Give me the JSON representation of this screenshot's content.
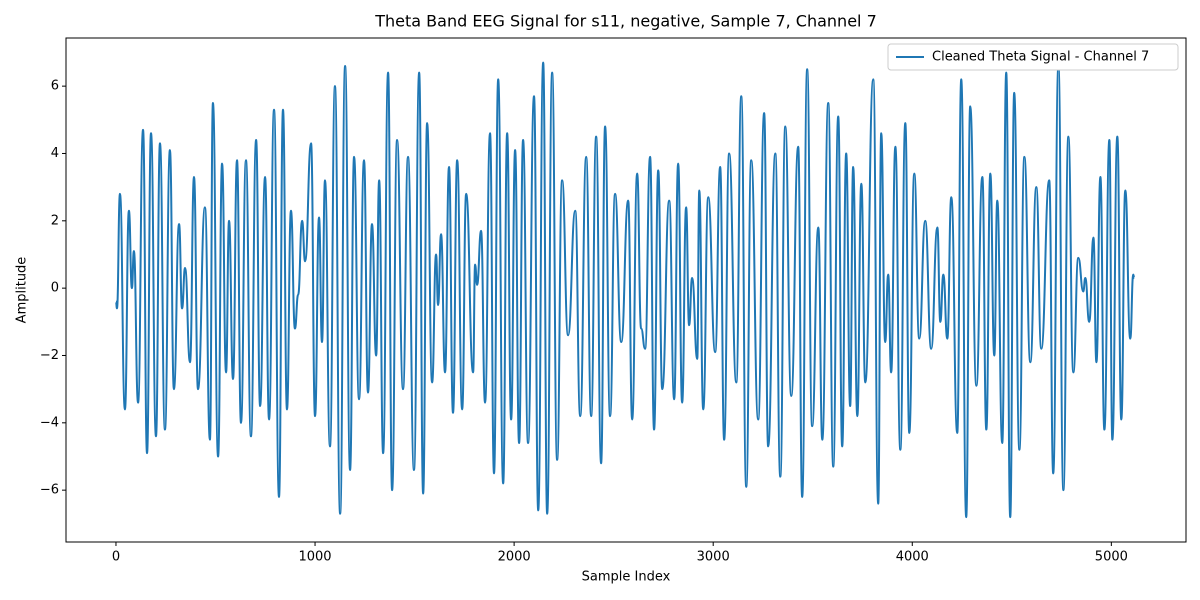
{
  "chart_data": {
    "type": "line",
    "title": "Theta Band EEG Signal for s11, negative, Sample 7, Channel 7",
    "x_label": "Sample Index",
    "y_label": "Amplitude",
    "xlim": [
      -251,
      5375
    ],
    "ylim": [
      -7.54,
      7.43
    ],
    "xticks": [
      0,
      1000,
      2000,
      3000,
      4000,
      5000
    ],
    "yticks": [
      {
        "value": -6,
        "label": "−6"
      },
      {
        "value": -4,
        "label": "−4"
      },
      {
        "value": -2,
        "label": "−2"
      },
      0,
      2,
      4,
      6
    ],
    "legend": "upper right",
    "x": [
      0,
      5,
      20,
      45,
      65,
      80,
      90,
      111,
      136,
      156,
      176,
      201,
      221,
      246,
      271,
      291,
      317,
      332,
      347,
      372,
      392,
      412,
      447,
      472,
      487,
      513,
      533,
      553,
      568,
      588,
      608,
      628,
      653,
      678,
      704,
      724,
      749,
      769,
      794,
      819,
      839,
      859,
      879,
      899,
      915,
      935,
      950,
      980,
      1000,
      1020,
      1035,
      1050,
      1075,
      1100,
      1126,
      1151,
      1176,
      1196,
      1221,
      1246,
      1266,
      1286,
      1307,
      1322,
      1342,
      1367,
      1387,
      1412,
      1442,
      1467,
      1497,
      1523,
      1543,
      1563,
      1588,
      1608,
      1618,
      1633,
      1653,
      1673,
      1693,
      1714,
      1739,
      1759,
      1794,
      1804,
      1814,
      1834,
      1854,
      1879,
      1899,
      1920,
      1945,
      1965,
      1985,
      2005,
      2025,
      2045,
      2070,
      2100,
      2121,
      2146,
      2166,
      2191,
      2216,
      2241,
      2271,
      2307,
      2332,
      2362,
      2387,
      2412,
      2437,
      2457,
      2482,
      2507,
      2538,
      2573,
      2593,
      2618,
      2638,
      2658,
      2683,
      2703,
      2724,
      2744,
      2779,
      2804,
      2824,
      2844,
      2864,
      2879,
      2894,
      2920,
      2930,
      2950,
      2975,
      3010,
      3035,
      3055,
      3080,
      3116,
      3141,
      3166,
      3191,
      3226,
      3256,
      3276,
      3312,
      3337,
      3362,
      3392,
      3427,
      3447,
      3472,
      3497,
      3528,
      3548,
      3578,
      3603,
      3628,
      3648,
      3668,
      3688,
      3703,
      3724,
      3744,
      3764,
      3804,
      3829,
      3844,
      3864,
      3879,
      3894,
      3915,
      3940,
      3965,
      3985,
      4010,
      4035,
      4065,
      4095,
      4126,
      4141,
      4156,
      4176,
      4196,
      4226,
      4246,
      4271,
      4291,
      4322,
      4352,
      4372,
      4392,
      4412,
      4427,
      4452,
      4472,
      4492,
      4512,
      4538,
      4563,
      4593,
      4623,
      4648,
      4688,
      4708,
      4734,
      4759,
      4784,
      4809,
      4834,
      4859,
      4869,
      4889,
      4910,
      4925,
      4945,
      4965,
      4990,
      5005,
      5030,
      5050,
      5070,
      5095,
      5110,
      5115
    ],
    "series": [
      {
        "name": "Cleaned Theta Signal - Channel 7",
        "color": "#1f77b4",
        "values": [
          -0.4,
          -0.6,
          2.8,
          -3.6,
          2.3,
          0,
          1.1,
          -3.4,
          4.7,
          -4.9,
          4.6,
          -4.4,
          4.3,
          -4.2,
          4.1,
          -3.0,
          1.9,
          -0.6,
          0.6,
          -2.2,
          3.3,
          -3.0,
          2.4,
          -4.5,
          5.5,
          -5.0,
          3.7,
          -2.5,
          2.0,
          -2.7,
          3.8,
          -4.0,
          3.8,
          -4.4,
          4.4,
          -3.5,
          3.3,
          -3.9,
          5.3,
          -6.2,
          5.3,
          -3.6,
          2.3,
          -1.2,
          -0.2,
          2.0,
          0.8,
          4.3,
          -3.8,
          2.1,
          -1.6,
          3.2,
          -4.7,
          6.0,
          -6.7,
          6.6,
          -5.4,
          3.9,
          -3.3,
          3.8,
          -3.1,
          1.9,
          -2.0,
          3.2,
          -4.9,
          6.4,
          -6.0,
          4.4,
          -3.0,
          3.9,
          -5.4,
          6.4,
          -6.1,
          4.9,
          -2.8,
          1.0,
          -0.5,
          1.6,
          -2.5,
          3.6,
          -3.7,
          3.8,
          -3.6,
          2.8,
          -2.5,
          0.7,
          0.1,
          1.7,
          -3.4,
          4.6,
          -5.5,
          6.2,
          -5.8,
          4.6,
          -3.9,
          4.1,
          -4.6,
          4.4,
          -4.6,
          5.7,
          -6.6,
          6.7,
          -6.7,
          6.4,
          -5.1,
          3.2,
          -1.4,
          2.3,
          -3.8,
          3.9,
          -3.8,
          4.5,
          -5.2,
          4.8,
          -3.8,
          2.8,
          -1.6,
          2.6,
          -3.9,
          3.4,
          -1.2,
          -1.8,
          3.9,
          -4.2,
          3.5,
          -3.0,
          2.6,
          -3.3,
          3.7,
          -3.4,
          2.4,
          -1.1,
          0.3,
          -2.1,
          2.9,
          -3.6,
          2.7,
          -1.9,
          3.6,
          -4.5,
          4.0,
          -2.8,
          5.7,
          -5.9,
          3.8,
          -3.9,
          5.2,
          -4.7,
          4.0,
          -5.6,
          4.8,
          -3.2,
          4.2,
          -6.2,
          6.5,
          -4.1,
          1.8,
          -4.5,
          5.5,
          -5.3,
          5.1,
          -4.7,
          4.0,
          -3.5,
          3.6,
          -3.8,
          3.1,
          -2.8,
          6.2,
          -6.4,
          4.6,
          -1.6,
          0.4,
          -2.5,
          4.2,
          -4.8,
          4.9,
          -4.3,
          3.4,
          -1.5,
          2.0,
          -1.8,
          1.8,
          -1.0,
          0.4,
          -1.5,
          2.7,
          -4.3,
          6.2,
          -6.8,
          5.4,
          -2.9,
          3.3,
          -4.2,
          3.4,
          -2.0,
          2.6,
          -4.6,
          6.4,
          -6.8,
          5.8,
          -4.8,
          3.9,
          -2.2,
          3.0,
          -1.8,
          3.2,
          -5.5,
          6.6,
          -6.0,
          4.5,
          -2.5,
          0.9,
          -0.1,
          0.3,
          -1.0,
          1.5,
          -2.2,
          3.3,
          -4.2,
          4.4,
          -4.5,
          4.5,
          -3.9,
          2.9,
          -1.5,
          0.4,
          0.3
        ]
      }
    ]
  }
}
